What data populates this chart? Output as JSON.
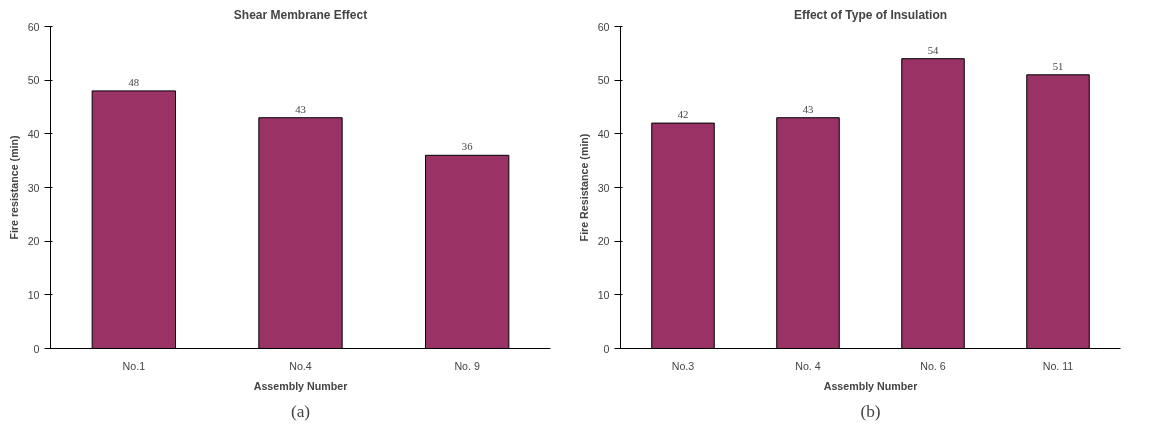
{
  "chart_data": [
    {
      "type": "bar",
      "title": "Shear Membrane Effect",
      "xlabel": "Assembly Number",
      "ylabel": "Fire resistance (min)",
      "categories": [
        "No.1",
        "No.4",
        "No. 9"
      ],
      "values": [
        48,
        43,
        36
      ],
      "color": "#993366",
      "ylim": [
        0,
        60
      ],
      "yticks": [
        0,
        10,
        20,
        30,
        40,
        50,
        60
      ],
      "grid": false,
      "data_labels": true,
      "annotations": [
        "(a)"
      ]
    },
    {
      "type": "bar",
      "title": "Effect of Type of Insulation",
      "xlabel": "Assembly Number",
      "ylabel": "Fire Resistance (min)",
      "categories": [
        "No.3",
        "No. 4",
        "No. 6",
        "No. 11"
      ],
      "values": [
        42,
        43,
        54,
        51
      ],
      "color": "#993366",
      "ylim": [
        0,
        60
      ],
      "yticks": [
        0,
        10,
        20,
        30,
        40,
        50,
        60
      ],
      "grid": false,
      "data_labels": true,
      "annotations": [
        "(b)"
      ]
    }
  ]
}
